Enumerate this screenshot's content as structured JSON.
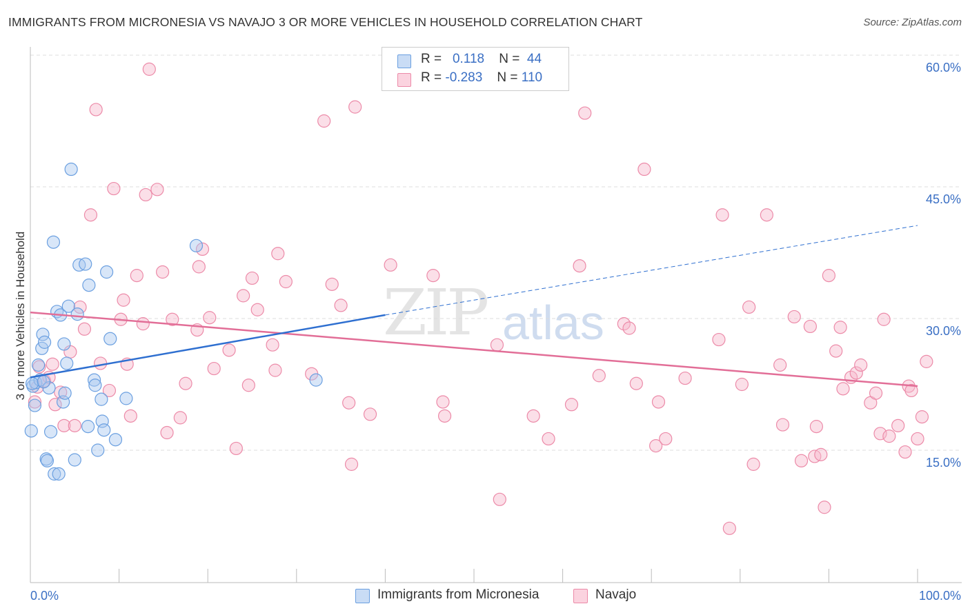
{
  "header": {
    "title": "IMMIGRANTS FROM MICRONESIA VS NAVAJO 3 OR MORE VEHICLES IN HOUSEHOLD CORRELATION CHART",
    "source": "Source: ZipAtlas.com"
  },
  "watermark": {
    "zip": "ZIP",
    "atlas": "atlas"
  },
  "legend_box": {
    "rows": [
      {
        "r_label": "R =",
        "r_value": "0.118",
        "n_label": "N =",
        "n_value": "44",
        "color": "#a9c8ef"
      },
      {
        "r_label": "R =",
        "r_value": "-0.283",
        "n_label": "N =",
        "n_value": "110",
        "color": "#f6b8cb"
      }
    ]
  },
  "chart_data": {
    "type": "scatter",
    "title": "IMMIGRANTS FROM MICRONESIA VS NAVAJO 3 OR MORE VEHICLES IN HOUSEHOLD CORRELATION CHART",
    "xlabel": "",
    "ylabel": "3 or more Vehicles in Household",
    "xlim": [
      0,
      100
    ],
    "ylim": [
      0,
      62
    ],
    "x_tick_labels": [
      "0.0%",
      "100.0%"
    ],
    "y_ticks": [
      15,
      30,
      45,
      60
    ],
    "y_tick_labels": [
      "15.0%",
      "30.0%",
      "45.0%",
      "60.0%"
    ],
    "grid": true,
    "legend": "bottom-center",
    "series": [
      {
        "name": "Immigrants from Micronesia",
        "color": "#a9c8ef",
        "stroke": "#6a9fe0",
        "trend": {
          "x0": 0,
          "y0": 23.3,
          "x1": 40,
          "y1": 30.4,
          "dashed_to_x": 100,
          "dashed_to_y": 40.6,
          "color": "#2e6fd0"
        },
        "points": [
          [
            0.1,
            17.2
          ],
          [
            0.3,
            22.3
          ],
          [
            0.5,
            20.1
          ],
          [
            0.6,
            22.7
          ],
          [
            0.9,
            24.7
          ],
          [
            1.1,
            23.0
          ],
          [
            1.3,
            26.6
          ],
          [
            1.4,
            28.2
          ],
          [
            1.6,
            27.3
          ],
          [
            1.8,
            14.0
          ],
          [
            1.9,
            13.8
          ],
          [
            2.1,
            22.1
          ],
          [
            2.3,
            17.1
          ],
          [
            2.6,
            38.7
          ],
          [
            2.7,
            12.3
          ],
          [
            3.0,
            30.8
          ],
          [
            3.2,
            12.3
          ],
          [
            3.4,
            30.4
          ],
          [
            3.7,
            20.5
          ],
          [
            3.8,
            27.1
          ],
          [
            3.9,
            21.5
          ],
          [
            4.1,
            24.9
          ],
          [
            4.3,
            31.4
          ],
          [
            4.6,
            47.0
          ],
          [
            5.0,
            13.9
          ],
          [
            5.3,
            30.5
          ],
          [
            5.5,
            36.1
          ],
          [
            6.2,
            36.2
          ],
          [
            6.5,
            17.7
          ],
          [
            6.6,
            33.8
          ],
          [
            7.2,
            23.0
          ],
          [
            7.3,
            22.4
          ],
          [
            7.6,
            15.0
          ],
          [
            8.0,
            20.8
          ],
          [
            8.1,
            18.3
          ],
          [
            8.3,
            17.3
          ],
          [
            8.6,
            35.3
          ],
          [
            9.0,
            27.7
          ],
          [
            9.6,
            16.2
          ],
          [
            10.8,
            20.9
          ],
          [
            18.7,
            38.3
          ],
          [
            32.2,
            23.0
          ],
          [
            0.2,
            22.6
          ],
          [
            1.5,
            22.8
          ]
        ]
      },
      {
        "name": "Navajo",
        "color": "#f6b8cb",
        "stroke": "#ec8aa8",
        "trend": {
          "x0": 0,
          "y0": 30.7,
          "x1": 100,
          "y1": 22.3,
          "color": "#e26e97"
        },
        "points": [
          [
            0.5,
            20.5
          ],
          [
            0.8,
            22.2
          ],
          [
            1.0,
            24.5
          ],
          [
            1.6,
            22.9
          ],
          [
            2.1,
            23.3
          ],
          [
            2.5,
            24.8
          ],
          [
            2.8,
            20.2
          ],
          [
            3.4,
            21.6
          ],
          [
            3.8,
            17.8
          ],
          [
            4.5,
            26.2
          ],
          [
            5.0,
            17.8
          ],
          [
            5.6,
            31.3
          ],
          [
            6.1,
            28.8
          ],
          [
            6.8,
            41.8
          ],
          [
            7.4,
            53.8
          ],
          [
            7.9,
            24.9
          ],
          [
            8.9,
            21.8
          ],
          [
            9.4,
            44.8
          ],
          [
            10.2,
            29.9
          ],
          [
            10.5,
            32.1
          ],
          [
            10.9,
            24.8
          ],
          [
            11.3,
            18.9
          ],
          [
            12.0,
            34.9
          ],
          [
            12.7,
            29.4
          ],
          [
            13.0,
            44.1
          ],
          [
            13.4,
            58.4
          ],
          [
            14.3,
            44.7
          ],
          [
            14.9,
            35.3
          ],
          [
            15.4,
            17.0
          ],
          [
            16.0,
            29.9
          ],
          [
            16.9,
            18.7
          ],
          [
            17.5,
            22.6
          ],
          [
            18.8,
            28.7
          ],
          [
            19.0,
            35.9
          ],
          [
            19.4,
            37.9
          ],
          [
            20.2,
            30.1
          ],
          [
            20.7,
            24.3
          ],
          [
            22.4,
            26.4
          ],
          [
            23.2,
            15.2
          ],
          [
            24.0,
            32.6
          ],
          [
            24.6,
            22.4
          ],
          [
            25.0,
            34.6
          ],
          [
            25.6,
            31.0
          ],
          [
            27.3,
            27.0
          ],
          [
            27.6,
            24.1
          ],
          [
            27.9,
            37.4
          ],
          [
            28.8,
            34.2
          ],
          [
            31.7,
            23.7
          ],
          [
            33.1,
            52.5
          ],
          [
            34.0,
            33.9
          ],
          [
            35.0,
            31.5
          ],
          [
            35.9,
            20.4
          ],
          [
            36.2,
            13.4
          ],
          [
            36.6,
            54.1
          ],
          [
            38.3,
            19.1
          ],
          [
            40.6,
            36.1
          ],
          [
            45.4,
            34.9
          ],
          [
            46.5,
            20.5
          ],
          [
            46.7,
            18.9
          ],
          [
            52.6,
            27.0
          ],
          [
            52.9,
            9.4
          ],
          [
            56.7,
            18.9
          ],
          [
            58.4,
            16.3
          ],
          [
            61.0,
            20.2
          ],
          [
            61.9,
            36.0
          ],
          [
            62.5,
            53.4
          ],
          [
            64.1,
            23.5
          ],
          [
            66.9,
            29.4
          ],
          [
            67.5,
            28.9
          ],
          [
            68.3,
            22.6
          ],
          [
            69.2,
            47.0
          ],
          [
            70.5,
            15.5
          ],
          [
            70.8,
            20.5
          ],
          [
            71.6,
            16.3
          ],
          [
            73.8,
            23.2
          ],
          [
            77.6,
            27.6
          ],
          [
            78.0,
            41.8
          ],
          [
            78.8,
            6.1
          ],
          [
            80.2,
            22.5
          ],
          [
            81.0,
            31.3
          ],
          [
            81.5,
            13.4
          ],
          [
            84.5,
            24.7
          ],
          [
            84.8,
            17.9
          ],
          [
            86.1,
            30.2
          ],
          [
            86.9,
            13.8
          ],
          [
            87.9,
            29.1
          ],
          [
            88.4,
            14.3
          ],
          [
            88.6,
            17.7
          ],
          [
            89.1,
            14.5
          ],
          [
            89.5,
            8.5
          ],
          [
            90.0,
            34.9
          ],
          [
            90.8,
            26.3
          ],
          [
            91.3,
            29.0
          ],
          [
            91.6,
            22.0
          ],
          [
            92.5,
            23.3
          ],
          [
            93.1,
            23.8
          ],
          [
            93.6,
            24.7
          ],
          [
            94.7,
            20.4
          ],
          [
            95.3,
            21.5
          ],
          [
            95.8,
            16.9
          ],
          [
            96.2,
            29.9
          ],
          [
            96.8,
            16.6
          ],
          [
            97.8,
            17.8
          ],
          [
            98.6,
            14.8
          ],
          [
            99.0,
            22.3
          ],
          [
            99.3,
            21.8
          ],
          [
            100.0,
            16.3
          ],
          [
            100.5,
            18.8
          ],
          [
            101.0,
            25.1
          ],
          [
            83.0,
            41.8
          ]
        ]
      }
    ]
  },
  "bottom_legend": {
    "items": [
      {
        "label": "Immigrants from Micronesia",
        "color": "#a9c8ef",
        "stroke": "#6a9fe0"
      },
      {
        "label": "Navajo",
        "color": "#f6b8cb",
        "stroke": "#ec8aa8"
      }
    ]
  }
}
